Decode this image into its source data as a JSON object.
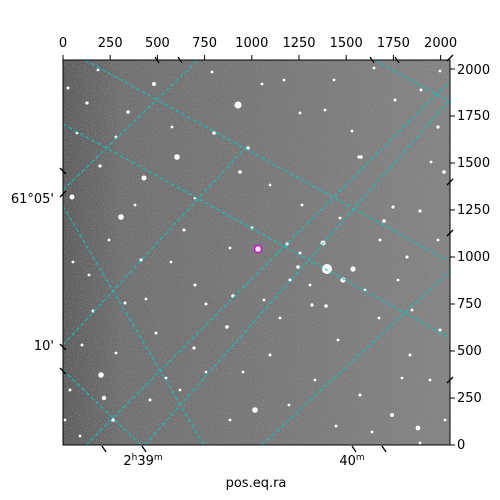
{
  "plot": {
    "background_color": "#6e6e6e",
    "grid_color": "#00c8c8",
    "marker_color": "#e600e6",
    "xlabel": "pos.eq.ra",
    "top_ticks": [
      "0",
      "250",
      "500",
      "750",
      "1000",
      "1250",
      "1500",
      "1750",
      "2000"
    ],
    "right_ticks": [
      "0",
      "250",
      "500",
      "750",
      "1000",
      "1250",
      "1500",
      "1750",
      "2000"
    ],
    "left_labels": [
      "61°05'",
      "10'"
    ],
    "bottom_labels": [
      {
        "text": "2",
        "sup1": "h",
        "text2": "39",
        "sup2": "m"
      },
      {
        "text": "40",
        "sup1": "m",
        "text2": "",
        "sup2": ""
      }
    ]
  }
}
